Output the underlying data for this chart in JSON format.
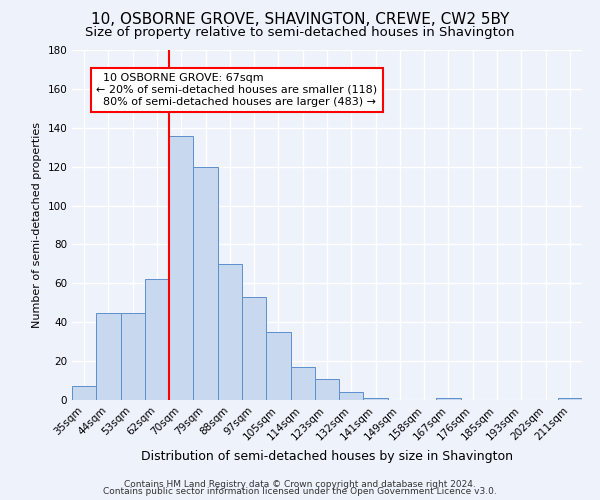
{
  "title": "10, OSBORNE GROVE, SHAVINGTON, CREWE, CW2 5BY",
  "subtitle": "Size of property relative to semi-detached houses in Shavington",
  "xlabel": "Distribution of semi-detached houses by size in Shavington",
  "ylabel": "Number of semi-detached properties",
  "categories": [
    "35sqm",
    "44sqm",
    "53sqm",
    "62sqm",
    "70sqm",
    "79sqm",
    "88sqm",
    "97sqm",
    "105sqm",
    "114sqm",
    "123sqm",
    "132sqm",
    "141sqm",
    "149sqm",
    "158sqm",
    "167sqm",
    "176sqm",
    "185sqm",
    "193sqm",
    "202sqm",
    "211sqm"
  ],
  "values": [
    7,
    45,
    45,
    62,
    136,
    120,
    70,
    53,
    35,
    17,
    11,
    4,
    1,
    0,
    0,
    1,
    0,
    0,
    0,
    0,
    1
  ],
  "bar_color": "#c8d9ef",
  "bar_edge_color": "#5b8fcc",
  "vline_color": "red",
  "vline_x_index": 4,
  "annotation_title": "10 OSBORNE GROVE: 67sqm",
  "annotation_line1": "← 20% of semi-detached houses are smaller (118)",
  "annotation_line2": "80% of semi-detached houses are larger (483) →",
  "annotation_box_color": "white",
  "annotation_box_edge": "red",
  "ylim": [
    0,
    180
  ],
  "yticks": [
    0,
    20,
    40,
    60,
    80,
    100,
    120,
    140,
    160,
    180
  ],
  "footer1": "Contains HM Land Registry data © Crown copyright and database right 2024.",
  "footer2": "Contains public sector information licensed under the Open Government Licence v3.0.",
  "bg_color": "#eef2fb",
  "title_fontsize": 11,
  "subtitle_fontsize": 9.5,
  "xlabel_fontsize": 9,
  "ylabel_fontsize": 8,
  "tick_fontsize": 7.5,
  "footer_fontsize": 6.5
}
